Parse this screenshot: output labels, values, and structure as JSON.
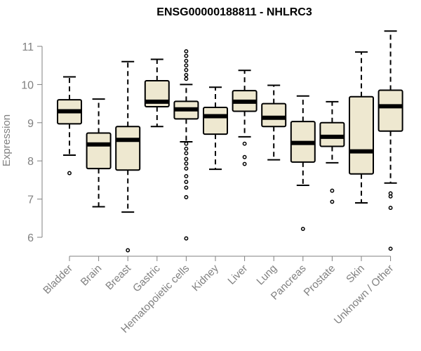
{
  "chart_data": {
    "type": "boxplot",
    "title": "ENSG00000188811 - NHLRC3",
    "xlabel": "",
    "ylabel": "Expression",
    "ylim": [
      5.6,
      11.45
    ],
    "yticks": [
      6,
      7,
      8,
      9,
      10,
      11
    ],
    "box_color": "#EEE8D0",
    "categories": [
      "Bladder",
      "Brain",
      "Breast",
      "Gastric",
      "Hematopoietic cells",
      "Kidney",
      "Liver",
      "Lung",
      "Pancreas",
      "Prostate",
      "Skin",
      "Unknown / Other"
    ],
    "boxes": [
      {
        "min": 8.15,
        "q1": 8.97,
        "median": 9.3,
        "q3": 9.6,
        "max": 10.2,
        "outliers": [
          7.68
        ]
      },
      {
        "min": 6.8,
        "q1": 7.8,
        "median": 8.43,
        "q3": 8.73,
        "max": 9.62,
        "outliers": []
      },
      {
        "min": 6.66,
        "q1": 7.76,
        "median": 8.55,
        "q3": 8.9,
        "max": 10.6,
        "outliers": [
          5.66
        ]
      },
      {
        "min": 8.9,
        "q1": 9.42,
        "median": 9.55,
        "q3": 10.1,
        "max": 10.66,
        "outliers": []
      },
      {
        "min": 8.5,
        "q1": 9.1,
        "median": 9.35,
        "q3": 9.56,
        "max": 10.0,
        "outliers": [
          10.87,
          10.75,
          10.62,
          10.5,
          10.38,
          10.25,
          10.15,
          8.45,
          8.32,
          8.2,
          8.05,
          7.93,
          7.8,
          7.6,
          7.45,
          7.3,
          7.05,
          5.97
        ]
      },
      {
        "min": 7.78,
        "q1": 8.7,
        "median": 9.17,
        "q3": 9.4,
        "max": 9.93,
        "outliers": []
      },
      {
        "min": 8.63,
        "q1": 9.3,
        "median": 9.55,
        "q3": 9.84,
        "max": 10.37,
        "outliers": [
          8.45,
          8.1,
          7.92
        ]
      },
      {
        "min": 8.03,
        "q1": 8.9,
        "median": 9.13,
        "q3": 9.5,
        "max": 9.98,
        "outliers": []
      },
      {
        "min": 7.36,
        "q1": 7.97,
        "median": 8.47,
        "q3": 9.03,
        "max": 9.7,
        "outliers": [
          6.22
        ]
      },
      {
        "min": 7.95,
        "q1": 8.38,
        "median": 8.63,
        "q3": 9.0,
        "max": 9.55,
        "outliers": [
          7.22,
          6.93
        ]
      },
      {
        "min": 6.9,
        "q1": 7.66,
        "median": 8.25,
        "q3": 9.68,
        "max": 10.85,
        "outliers": []
      },
      {
        "min": 7.42,
        "q1": 8.78,
        "median": 9.43,
        "q3": 9.85,
        "max": 11.4,
        "outliers": [
          7.15,
          7.07,
          6.77,
          5.7
        ]
      }
    ]
  }
}
